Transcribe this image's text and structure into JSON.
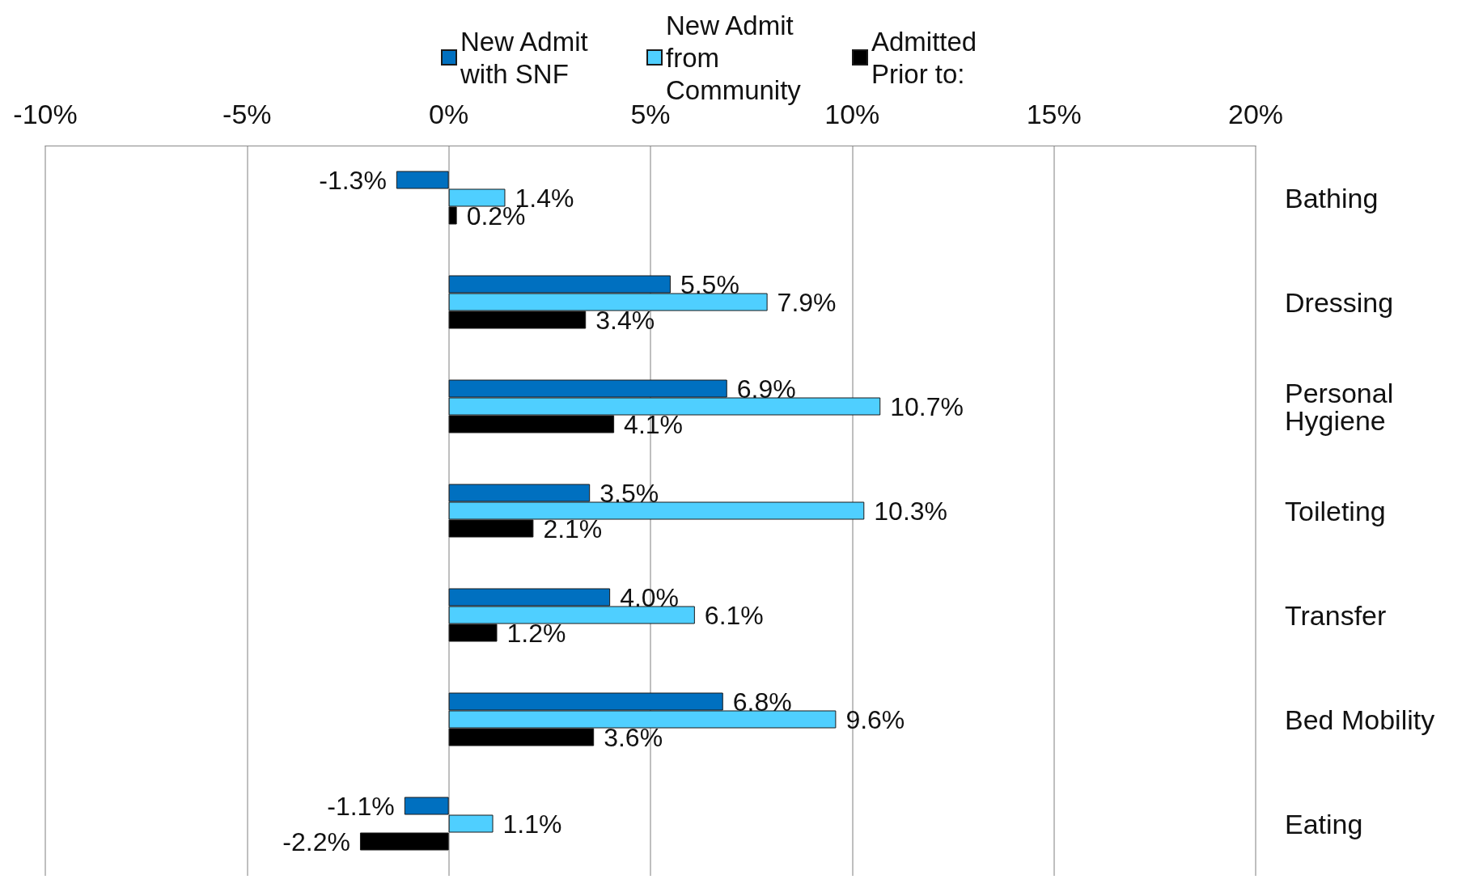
{
  "chart_data": {
    "type": "bar",
    "orientation": "horizontal",
    "categories": [
      "Bathing",
      "Dressing",
      "Personal Hygiene",
      "Toileting",
      "Transfer",
      "Bed Mobility",
      "Eating"
    ],
    "series": [
      {
        "name": "New Admit with SNF",
        "color": "#0070c0",
        "values": [
          -1.3,
          5.5,
          6.9,
          3.5,
          4.0,
          6.8,
          -1.1
        ],
        "value_labels": [
          "-1.3%",
          "5.5%",
          "6.9%",
          "3.5%",
          "4.0%",
          "6.8%",
          "-1.1%"
        ]
      },
      {
        "name": "New Admit from Community",
        "color": "#4fcfff",
        "values": [
          1.4,
          7.9,
          10.7,
          10.3,
          6.1,
          9.6,
          1.1
        ],
        "value_labels": [
          "1.4%",
          "7.9%",
          "10.7%",
          "10.3%",
          "6.1%",
          "9.6%",
          "1.1%"
        ]
      },
      {
        "name": "Admitted Prior to:",
        "color": "#000000",
        "values": [
          0.2,
          3.4,
          4.1,
          2.1,
          1.2,
          3.6,
          -2.2
        ],
        "value_labels": [
          "0.2%",
          "3.4%",
          "4.1%",
          "2.1%",
          "1.2%",
          "3.6%",
          "-2.2%"
        ]
      }
    ],
    "xlim": [
      -10,
      20
    ],
    "xticks": [
      {
        "value": -10,
        "label": "-10%"
      },
      {
        "value": -5,
        "label": "-5%"
      },
      {
        "value": 0,
        "label": "0%"
      },
      {
        "value": 5,
        "label": "5%"
      },
      {
        "value": 10,
        "label": "10%"
      },
      {
        "value": 15,
        "label": "15%"
      },
      {
        "value": 20,
        "label": "20%"
      }
    ],
    "grid": "x",
    "legend": "top"
  }
}
